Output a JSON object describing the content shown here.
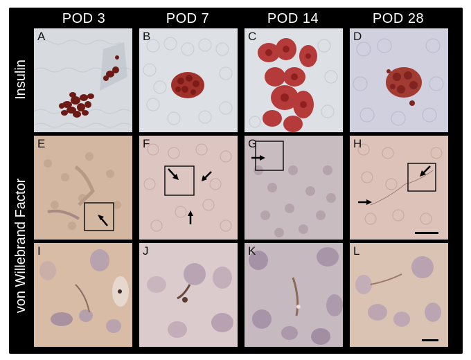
{
  "columns": [
    "POD 3",
    "POD 7",
    "POD 14",
    "POD 28"
  ],
  "rows": {
    "insulin": "Insulin",
    "vwf": "von Willebrand Factor"
  },
  "panels": [
    "A",
    "B",
    "C",
    "D",
    "E",
    "F",
    "G",
    "H",
    "I",
    "J",
    "K",
    "L"
  ],
  "colors": {
    "background": "#000000",
    "insulin_tissue": "#d9dde4",
    "insulin_stain": "#8b1f1f",
    "vwf_tissue": "#d8c2ab",
    "closeup_tissue": "#d9c2b0"
  }
}
